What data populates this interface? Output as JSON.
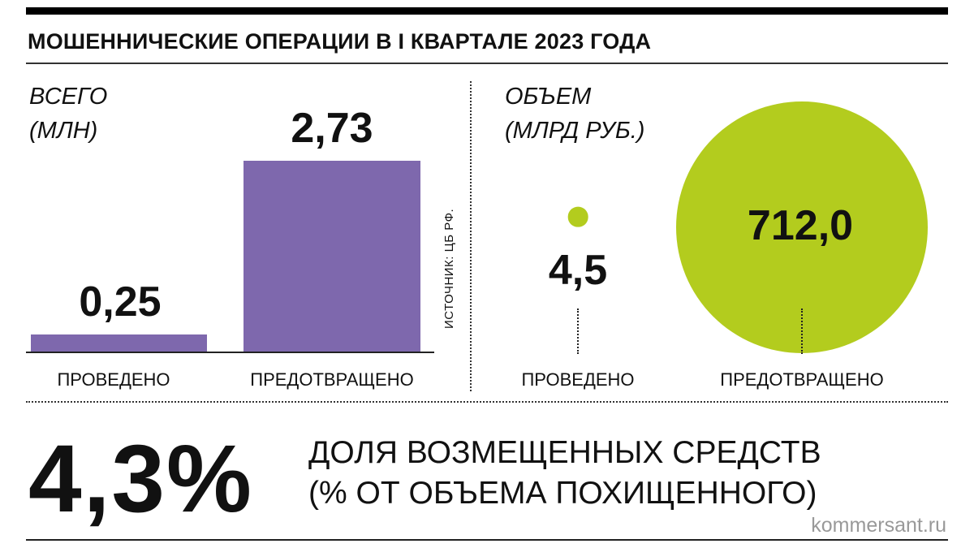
{
  "title": "МОШЕННИЧЕСКИЕ ОПЕРАЦИИ В I КВАРТАЛЕ 2023 ГОДА",
  "source": "ИСТОЧНИК: ЦБ РФ.",
  "footer": {
    "share_value": "4,3%",
    "share_label": "ДОЛЯ ВОЗМЕЩЕННЫХ СРЕДСТВ\n(% ОТ ОБЪЕМА ПОХИЩЕННОГО)",
    "brand": "kommersant.ru"
  },
  "colors": {
    "bar": "#7e68ad",
    "circle": "#b3cc1e"
  },
  "chart_data": [
    {
      "type": "bar",
      "title": "ВСЕГО\n(МЛН)",
      "categories": [
        "ПРОВЕДЕНО",
        "ПРЕДОТВРАЩЕНО"
      ],
      "values": [
        0.25,
        2.73
      ],
      "labels": [
        "0,25",
        "2,73"
      ]
    },
    {
      "type": "bubble",
      "title": "ОБЪЕМ\n(МЛРД РУБ.)",
      "categories": [
        "ПРОВЕДЕНО",
        "ПРЕДОТВРАЩЕНО"
      ],
      "values": [
        4.5,
        712.0
      ],
      "labels": [
        "4,5",
        "712,0"
      ]
    }
  ]
}
